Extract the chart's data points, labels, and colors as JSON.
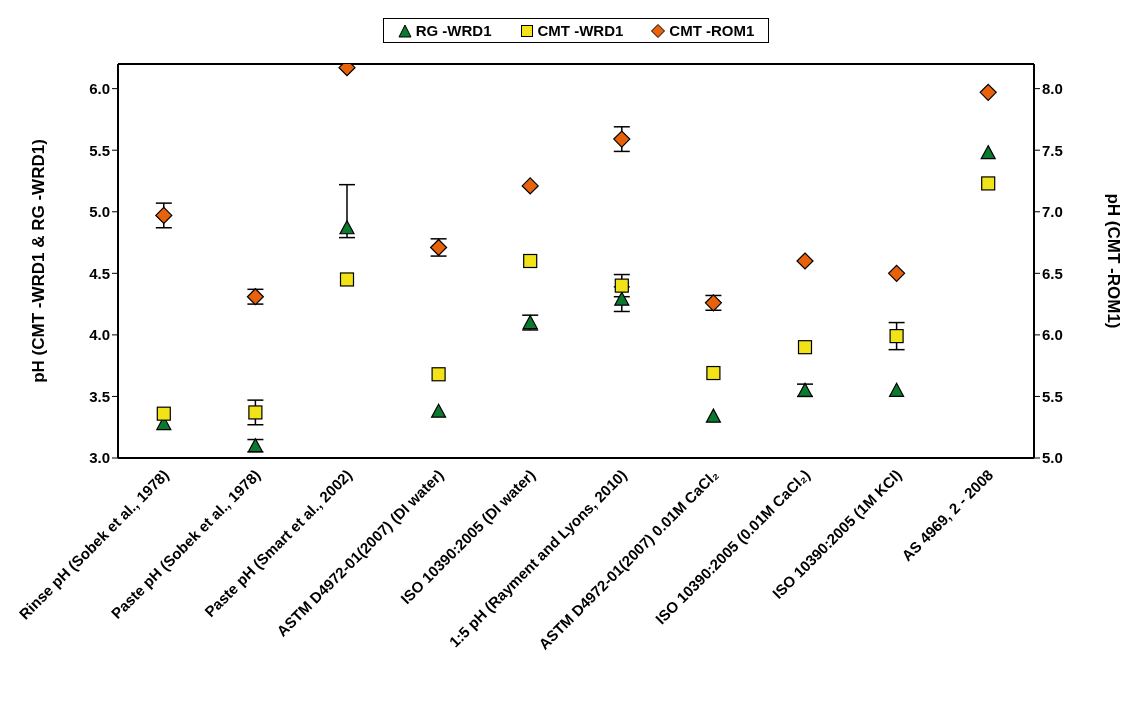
{
  "chart_data": {
    "type": "scatter",
    "categories": [
      "Rinse pH (Sobek et al., 1978)",
      "Paste pH (Sobek et al., 1978)",
      "Paste pH (Smart et al., 2002)",
      "ASTM D4972-01(2007) (DI water)",
      "ISO 10390:2005 (DI water)",
      "1:5 pH (Rayment and Lyons, 2010)",
      "ASTM D4972-01(2007) 0.01M CaCl₂",
      "ISO 10390:2005 (0.01M CaCl₂)",
      "ISO 10390:2005 (1M KCl)",
      "AS 4969, 2 - 2008"
    ],
    "series": [
      {
        "name": "RG -WRD1",
        "color": "#0a7a2e",
        "marker": "triangle",
        "values": [
          3.28,
          3.1,
          4.87,
          3.38,
          4.1,
          4.29,
          3.34,
          3.55,
          3.55,
          5.48
        ],
        "errors": [
          null,
          0.05,
          [
            4.79,
            5.22
          ],
          null,
          0.06,
          0.1,
          null,
          0.05,
          null,
          null
        ]
      },
      {
        "name": "CMT -WRD1",
        "color": "#f2e318",
        "marker": "square",
        "values": [
          3.36,
          3.37,
          4.45,
          3.68,
          4.6,
          4.4,
          3.69,
          3.9,
          3.99,
          5.23
        ],
        "errors": [
          null,
          0.1,
          null,
          null,
          null,
          0.09,
          null,
          null,
          0.11,
          null
        ]
      },
      {
        "name": "CMT -ROM1",
        "color": "#e8620c",
        "marker": "diamond",
        "axis": "y2",
        "values": [
          6.97,
          6.31,
          8.17,
          6.71,
          7.21,
          7.59,
          6.26,
          6.6,
          6.5,
          7.97
        ],
        "errors": [
          0.1,
          0.06,
          null,
          0.07,
          null,
          0.1,
          0.06,
          null,
          null,
          null
        ]
      }
    ],
    "ylabel": "pH (CMT -WRD1 & RG -WRD1)",
    "y2label": "pH (CMT -ROM1)",
    "ylim": [
      3,
      6.2
    ],
    "yticks": [
      {
        "value": 3,
        "label": "3.0"
      },
      3.5,
      {
        "value": 4,
        "label": "4.0"
      },
      4.5,
      {
        "value": 5,
        "label": "5.0"
      },
      5.5,
      {
        "value": 6,
        "label": "6.0"
      }
    ],
    "y2lim": [
      5,
      8.2
    ],
    "y2ticks": [
      {
        "value": 5,
        "label": "5.0"
      },
      5.5,
      {
        "value": 6,
        "label": "6.0"
      },
      6.5,
      {
        "value": 7,
        "label": "7.0"
      },
      7.5,
      {
        "value": 8,
        "label": "8.0"
      }
    ],
    "legend": "top",
    "grid": false
  }
}
